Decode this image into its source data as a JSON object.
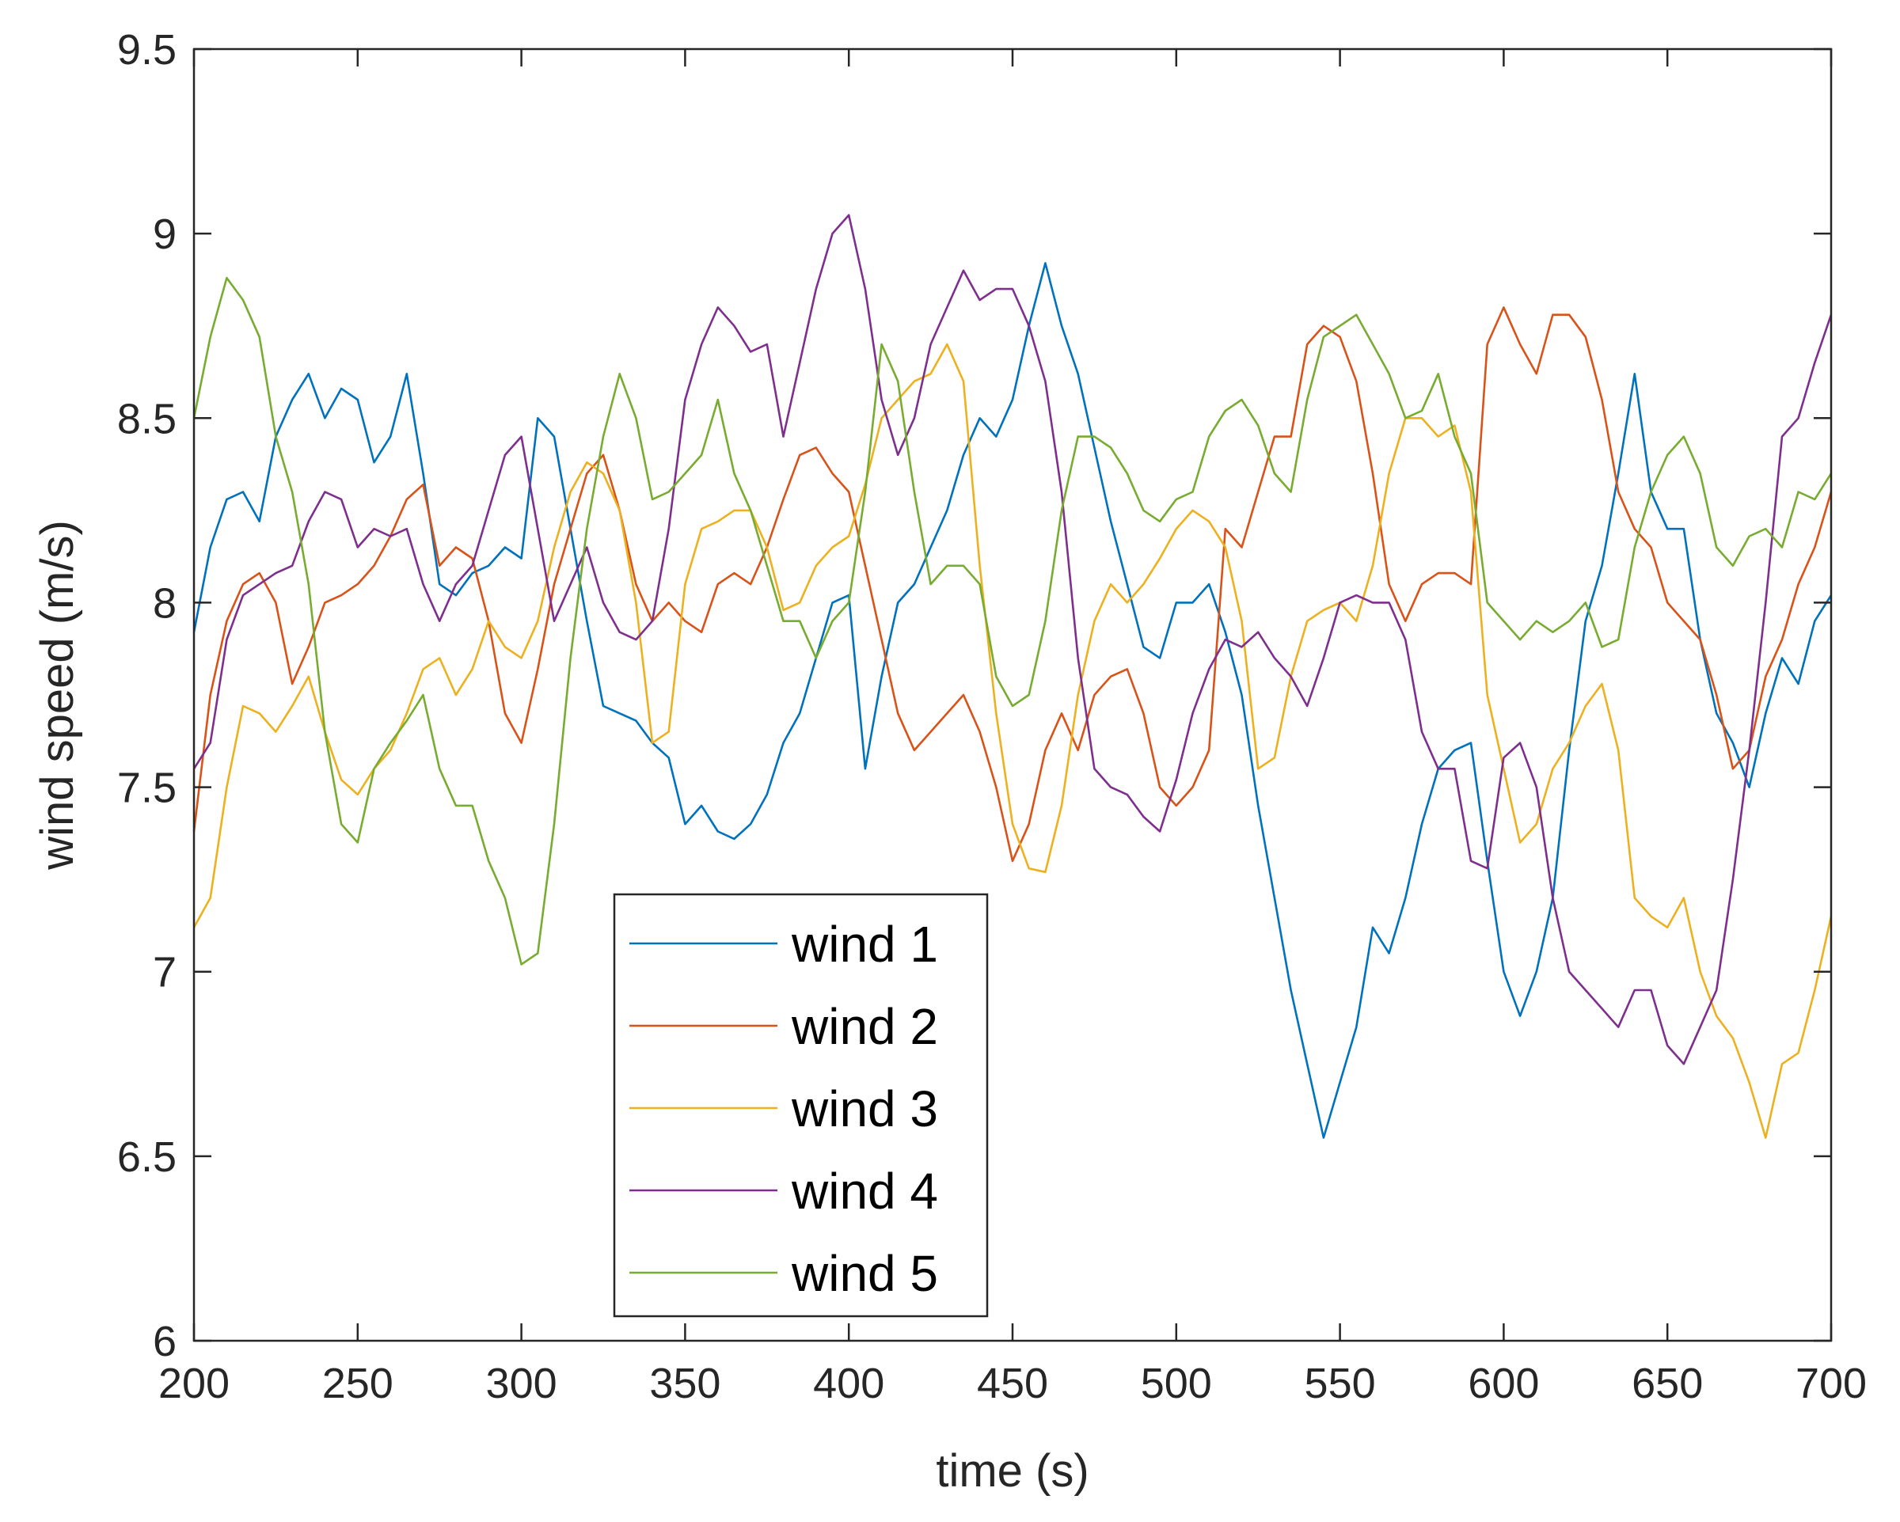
{
  "chart_data": {
    "type": "line",
    "xlabel": "time (s)",
    "ylabel": "wind speed (m/s)",
    "xlim": [
      200,
      700
    ],
    "ylim": [
      6,
      9.5
    ],
    "xticks": [
      "200",
      "250",
      "300",
      "350",
      "400",
      "450",
      "500",
      "550",
      "600",
      "650",
      "700"
    ],
    "yticks": [
      "6",
      "6.5",
      "7",
      "7.5",
      "8",
      "8.5",
      "9",
      "9.5"
    ],
    "grid": false,
    "legend_position": "bottom-center",
    "x": [
      200,
      205,
      210,
      215,
      220,
      225,
      230,
      235,
      240,
      245,
      250,
      255,
      260,
      265,
      270,
      275,
      280,
      285,
      290,
      295,
      300,
      305,
      310,
      315,
      320,
      325,
      330,
      335,
      340,
      345,
      350,
      355,
      360,
      365,
      370,
      375,
      380,
      385,
      390,
      395,
      400,
      405,
      410,
      415,
      420,
      425,
      430,
      435,
      440,
      445,
      450,
      455,
      460,
      465,
      470,
      475,
      480,
      485,
      490,
      495,
      500,
      505,
      510,
      515,
      520,
      525,
      530,
      535,
      540,
      545,
      550,
      555,
      560,
      565,
      570,
      575,
      580,
      585,
      590,
      595,
      600,
      605,
      610,
      615,
      620,
      625,
      630,
      635,
      640,
      645,
      650,
      655,
      660,
      665,
      670,
      675,
      680,
      685,
      690,
      695,
      700
    ],
    "series": [
      {
        "name": "wind 1",
        "color": "#0072BD",
        "values": [
          7.92,
          8.15,
          8.28,
          8.3,
          8.22,
          8.45,
          8.55,
          8.62,
          8.5,
          8.58,
          8.55,
          8.38,
          8.45,
          8.62,
          8.35,
          8.05,
          8.02,
          8.08,
          8.1,
          8.15,
          8.12,
          8.5,
          8.45,
          8.2,
          7.95,
          7.72,
          7.7,
          7.68,
          7.62,
          7.58,
          7.4,
          7.45,
          7.38,
          7.36,
          7.4,
          7.48,
          7.62,
          7.7,
          7.85,
          8.0,
          8.02,
          7.55,
          7.8,
          8.0,
          8.05,
          8.15,
          8.25,
          8.4,
          8.5,
          8.45,
          8.55,
          8.75,
          8.92,
          8.75,
          8.62,
          8.42,
          8.22,
          8.05,
          7.88,
          7.85,
          8.0,
          8.0,
          8.05,
          7.92,
          7.75,
          7.45,
          7.2,
          6.95,
          6.75,
          6.55,
          6.7,
          6.85,
          7.12,
          7.05,
          7.2,
          7.4,
          7.55,
          7.6,
          7.62,
          7.3,
          7.0,
          6.88,
          7.0,
          7.2,
          7.6,
          7.95,
          8.1,
          8.35,
          8.62,
          8.3,
          8.2,
          8.2,
          7.9,
          7.7,
          7.62,
          7.5,
          7.7,
          7.85,
          7.78,
          7.95,
          8.02
        ]
      },
      {
        "name": "wind 2",
        "color": "#D95319",
        "values": [
          7.38,
          7.75,
          7.95,
          8.05,
          8.08,
          8.0,
          7.78,
          7.88,
          8.0,
          8.02,
          8.05,
          8.1,
          8.18,
          8.28,
          8.32,
          8.1,
          8.15,
          8.12,
          7.95,
          7.7,
          7.62,
          7.82,
          8.05,
          8.2,
          8.35,
          8.4,
          8.25,
          8.05,
          7.95,
          8.0,
          7.95,
          7.92,
          8.05,
          8.08,
          8.05,
          8.15,
          8.28,
          8.4,
          8.42,
          8.35,
          8.3,
          8.1,
          7.9,
          7.7,
          7.6,
          7.65,
          7.7,
          7.75,
          7.65,
          7.5,
          7.3,
          7.4,
          7.6,
          7.7,
          7.6,
          7.75,
          7.8,
          7.82,
          7.7,
          7.5,
          7.45,
          7.5,
          7.6,
          8.2,
          8.15,
          8.3,
          8.45,
          8.45,
          8.7,
          8.75,
          8.72,
          8.6,
          8.35,
          8.05,
          7.95,
          8.05,
          8.08,
          8.08,
          8.05,
          8.7,
          8.8,
          8.7,
          8.62,
          8.78,
          8.78,
          8.72,
          8.55,
          8.3,
          8.2,
          8.15,
          8.0,
          7.95,
          7.9,
          7.75,
          7.55,
          7.6,
          7.8,
          7.9,
          8.05,
          8.15,
          8.3
        ]
      },
      {
        "name": "wind 3",
        "color": "#EDB120",
        "values": [
          7.12,
          7.2,
          7.5,
          7.72,
          7.7,
          7.65,
          7.72,
          7.8,
          7.65,
          7.52,
          7.48,
          7.55,
          7.6,
          7.7,
          7.82,
          7.85,
          7.75,
          7.82,
          7.95,
          7.88,
          7.85,
          7.95,
          8.15,
          8.3,
          8.38,
          8.35,
          8.25,
          8.0,
          7.62,
          7.65,
          8.05,
          8.2,
          8.22,
          8.25,
          8.25,
          8.15,
          7.98,
          8.0,
          8.1,
          8.15,
          8.18,
          8.32,
          8.5,
          8.55,
          8.6,
          8.62,
          8.7,
          8.6,
          8.1,
          7.7,
          7.4,
          7.28,
          7.27,
          7.45,
          7.75,
          7.95,
          8.05,
          8.0,
          8.05,
          8.12,
          8.2,
          8.25,
          8.22,
          8.15,
          7.95,
          7.55,
          7.58,
          7.8,
          7.95,
          7.98,
          8.0,
          7.95,
          8.1,
          8.35,
          8.5,
          8.5,
          8.45,
          8.48,
          8.3,
          7.75,
          7.55,
          7.35,
          7.4,
          7.55,
          7.62,
          7.72,
          7.78,
          7.6,
          7.2,
          7.15,
          7.12,
          7.2,
          7.0,
          6.88,
          6.82,
          6.7,
          6.55,
          6.75,
          6.78,
          6.95,
          7.15
        ]
      },
      {
        "name": "wind 4",
        "color": "#7E2F8E",
        "values": [
          7.55,
          7.62,
          7.9,
          8.02,
          8.05,
          8.08,
          8.1,
          8.22,
          8.3,
          8.28,
          8.15,
          8.2,
          8.18,
          8.2,
          8.05,
          7.95,
          8.05,
          8.1,
          8.25,
          8.4,
          8.45,
          8.2,
          7.95,
          8.05,
          8.15,
          8.0,
          7.92,
          7.9,
          7.95,
          8.2,
          8.55,
          8.7,
          8.8,
          8.75,
          8.68,
          8.7,
          8.45,
          8.65,
          8.85,
          9.0,
          9.05,
          8.85,
          8.55,
          8.4,
          8.5,
          8.7,
          8.8,
          8.9,
          8.82,
          8.85,
          8.85,
          8.75,
          8.6,
          8.3,
          7.85,
          7.55,
          7.5,
          7.48,
          7.42,
          7.38,
          7.52,
          7.7,
          7.82,
          7.9,
          7.88,
          7.92,
          7.85,
          7.8,
          7.72,
          7.85,
          8.0,
          8.02,
          8.0,
          8.0,
          7.9,
          7.65,
          7.55,
          7.55,
          7.3,
          7.28,
          7.58,
          7.62,
          7.5,
          7.2,
          7.0,
          6.95,
          6.9,
          6.85,
          6.95,
          6.95,
          6.8,
          6.75,
          6.85,
          6.95,
          7.25,
          7.6,
          8.0,
          8.45,
          8.5,
          8.65,
          8.78
        ]
      },
      {
        "name": "wind 5",
        "color": "#77AC30",
        "values": [
          8.5,
          8.72,
          8.88,
          8.82,
          8.72,
          8.45,
          8.3,
          8.05,
          7.65,
          7.4,
          7.35,
          7.55,
          7.62,
          7.68,
          7.75,
          7.55,
          7.45,
          7.45,
          7.3,
          7.2,
          7.02,
          7.05,
          7.4,
          7.85,
          8.2,
          8.45,
          8.62,
          8.5,
          8.28,
          8.3,
          8.35,
          8.4,
          8.55,
          8.35,
          8.25,
          8.1,
          7.95,
          7.95,
          7.85,
          7.95,
          8.0,
          8.3,
          8.7,
          8.6,
          8.3,
          8.05,
          8.1,
          8.1,
          8.05,
          7.8,
          7.72,
          7.75,
          7.95,
          8.25,
          8.45,
          8.45,
          8.42,
          8.35,
          8.25,
          8.22,
          8.28,
          8.3,
          8.45,
          8.52,
          8.55,
          8.48,
          8.35,
          8.3,
          8.55,
          8.72,
          8.75,
          8.78,
          8.7,
          8.62,
          8.5,
          8.52,
          8.62,
          8.45,
          8.35,
          8.0,
          7.95,
          7.9,
          7.95,
          7.92,
          7.95,
          8.0,
          7.88,
          7.9,
          8.15,
          8.3,
          8.4,
          8.45,
          8.35,
          8.15,
          8.1,
          8.18,
          8.2,
          8.15,
          8.3,
          8.28,
          8.35
        ]
      }
    ]
  }
}
